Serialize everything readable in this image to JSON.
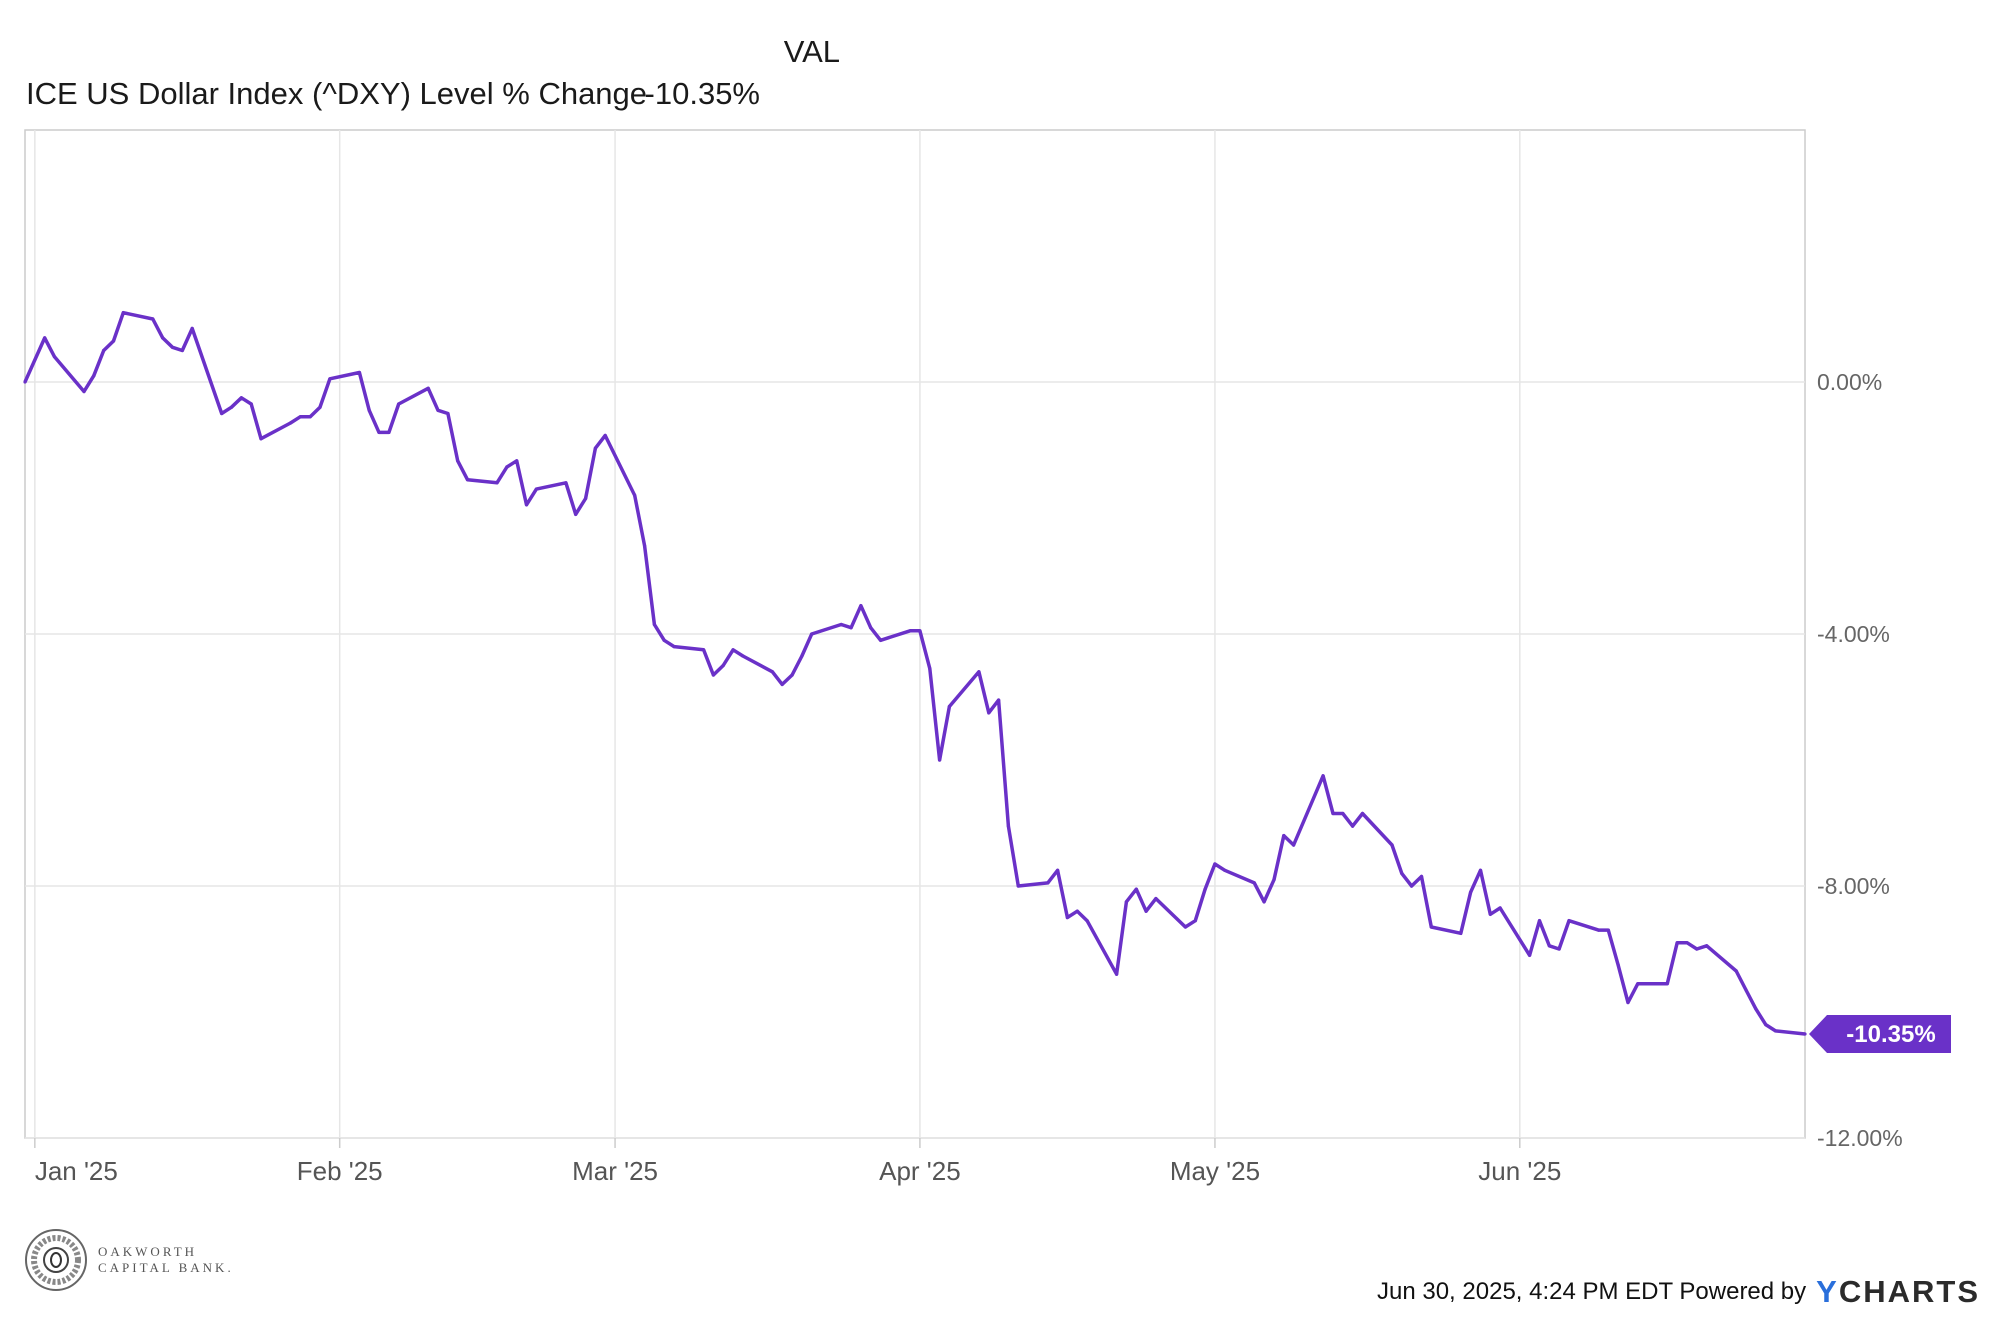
{
  "legend": {
    "column_header": "VAL",
    "series_label": "ICE US Dollar Index (^DXY) Level % Change",
    "series_value": "-10.35%"
  },
  "footer": {
    "timestamp": "Jun 30, 2025, 4:24 PM EDT Powered by",
    "brand_y": "Y",
    "brand_rest": "CHARTS"
  },
  "logo": {
    "line1": "OAKWORTH",
    "line2": "CAPITAL BANK."
  },
  "colors": {
    "series": "#6a31c8",
    "grid": "#e6e6e6",
    "axis": "#cccccc"
  },
  "chart_data": {
    "type": "line",
    "title": "",
    "xlabel": "",
    "ylabel": "",
    "ylim": [
      -12,
      4
    ],
    "xlim": [
      "2024-12-31",
      "2025-06-30"
    ],
    "y_ticks": [
      0,
      -4,
      -8,
      -12
    ],
    "y_tick_labels": [
      "0.00%",
      "-4.00%",
      "-8.00%",
      "-12.00%"
    ],
    "x_ticks": [
      "2025-01-01",
      "2025-02-01",
      "2025-03-01",
      "2025-04-01",
      "2025-05-01",
      "2025-06-01"
    ],
    "x_tick_labels": [
      "Jan '25",
      "Feb '25",
      "Mar '25",
      "Apr '25",
      "May '25",
      "Jun '25"
    ],
    "grid": true,
    "last_value_label": "-10.35%",
    "series": [
      {
        "name": "ICE US Dollar Index (^DXY) Level % Change",
        "points": [
          [
            "2024-12-31",
            0.0
          ],
          [
            "2025-01-02",
            0.7
          ],
          [
            "2025-01-03",
            0.4
          ],
          [
            "2025-01-06",
            -0.15
          ],
          [
            "2025-01-07",
            0.1
          ],
          [
            "2025-01-08",
            0.5
          ],
          [
            "2025-01-09",
            0.65
          ],
          [
            "2025-01-10",
            1.1
          ],
          [
            "2025-01-13",
            1.0
          ],
          [
            "2025-01-14",
            0.7
          ],
          [
            "2025-01-15",
            0.55
          ],
          [
            "2025-01-16",
            0.5
          ],
          [
            "2025-01-17",
            0.85
          ],
          [
            "2025-01-20",
            -0.5
          ],
          [
            "2025-01-21",
            -0.4
          ],
          [
            "2025-01-22",
            -0.25
          ],
          [
            "2025-01-23",
            -0.35
          ],
          [
            "2025-01-24",
            -0.9
          ],
          [
            "2025-01-27",
            -0.65
          ],
          [
            "2025-01-28",
            -0.55
          ],
          [
            "2025-01-29",
            -0.55
          ],
          [
            "2025-01-30",
            -0.4
          ],
          [
            "2025-01-31",
            0.05
          ],
          [
            "2025-02-03",
            0.15
          ],
          [
            "2025-02-04",
            -0.45
          ],
          [
            "2025-02-05",
            -0.8
          ],
          [
            "2025-02-06",
            -0.8
          ],
          [
            "2025-02-07",
            -0.35
          ],
          [
            "2025-02-10",
            -0.1
          ],
          [
            "2025-02-11",
            -0.45
          ],
          [
            "2025-02-12",
            -0.5
          ],
          [
            "2025-02-13",
            -1.25
          ],
          [
            "2025-02-14",
            -1.55
          ],
          [
            "2025-02-17",
            -1.6
          ],
          [
            "2025-02-18",
            -1.35
          ],
          [
            "2025-02-19",
            -1.25
          ],
          [
            "2025-02-20",
            -1.95
          ],
          [
            "2025-02-21",
            -1.7
          ],
          [
            "2025-02-24",
            -1.6
          ],
          [
            "2025-02-25",
            -2.1
          ],
          [
            "2025-02-26",
            -1.85
          ],
          [
            "2025-02-27",
            -1.05
          ],
          [
            "2025-02-28",
            -0.85
          ],
          [
            "2025-03-03",
            -1.8
          ],
          [
            "2025-03-04",
            -2.6
          ],
          [
            "2025-03-05",
            -3.85
          ],
          [
            "2025-03-06",
            -4.1
          ],
          [
            "2025-03-07",
            -4.2
          ],
          [
            "2025-03-10",
            -4.25
          ],
          [
            "2025-03-11",
            -4.65
          ],
          [
            "2025-03-12",
            -4.5
          ],
          [
            "2025-03-13",
            -4.25
          ],
          [
            "2025-03-14",
            -4.35
          ],
          [
            "2025-03-17",
            -4.6
          ],
          [
            "2025-03-18",
            -4.8
          ],
          [
            "2025-03-19",
            -4.65
          ],
          [
            "2025-03-20",
            -4.35
          ],
          [
            "2025-03-21",
            -4.0
          ],
          [
            "2025-03-24",
            -3.85
          ],
          [
            "2025-03-25",
            -3.9
          ],
          [
            "2025-03-26",
            -3.55
          ],
          [
            "2025-03-27",
            -3.9
          ],
          [
            "2025-03-28",
            -4.1
          ],
          [
            "2025-03-31",
            -3.95
          ],
          [
            "2025-04-01",
            -3.95
          ],
          [
            "2025-04-02",
            -4.55
          ],
          [
            "2025-04-03",
            -6.0
          ],
          [
            "2025-04-04",
            -5.15
          ],
          [
            "2025-04-07",
            -4.6
          ],
          [
            "2025-04-08",
            -5.25
          ],
          [
            "2025-04-09",
            -5.05
          ],
          [
            "2025-04-10",
            -7.05
          ],
          [
            "2025-04-11",
            -8.0
          ],
          [
            "2025-04-14",
            -7.95
          ],
          [
            "2025-04-15",
            -7.75
          ],
          [
            "2025-04-16",
            -8.5
          ],
          [
            "2025-04-17",
            -8.4
          ],
          [
            "2025-04-18",
            -8.55
          ],
          [
            "2025-04-21",
            -9.4
          ],
          [
            "2025-04-22",
            -8.25
          ],
          [
            "2025-04-23",
            -8.05
          ],
          [
            "2025-04-24",
            -8.4
          ],
          [
            "2025-04-25",
            -8.2
          ],
          [
            "2025-04-28",
            -8.65
          ],
          [
            "2025-04-29",
            -8.55
          ],
          [
            "2025-04-30",
            -8.05
          ],
          [
            "2025-05-01",
            -7.65
          ],
          [
            "2025-05-02",
            -7.75
          ],
          [
            "2025-05-05",
            -7.95
          ],
          [
            "2025-05-06",
            -8.25
          ],
          [
            "2025-05-07",
            -7.9
          ],
          [
            "2025-05-08",
            -7.2
          ],
          [
            "2025-05-09",
            -7.35
          ],
          [
            "2025-05-12",
            -6.25
          ],
          [
            "2025-05-13",
            -6.85
          ],
          [
            "2025-05-14",
            -6.85
          ],
          [
            "2025-05-15",
            -7.05
          ],
          [
            "2025-05-16",
            -6.85
          ],
          [
            "2025-05-19",
            -7.35
          ],
          [
            "2025-05-20",
            -7.8
          ],
          [
            "2025-05-21",
            -8.0
          ],
          [
            "2025-05-22",
            -7.85
          ],
          [
            "2025-05-23",
            -8.65
          ],
          [
            "2025-05-26",
            -8.75
          ],
          [
            "2025-05-27",
            -8.1
          ],
          [
            "2025-05-28",
            -7.75
          ],
          [
            "2025-05-29",
            -8.45
          ],
          [
            "2025-05-30",
            -8.35
          ],
          [
            "2025-06-02",
            -9.1
          ],
          [
            "2025-06-03",
            -8.55
          ],
          [
            "2025-06-04",
            -8.95
          ],
          [
            "2025-06-05",
            -9.0
          ],
          [
            "2025-06-06",
            -8.55
          ],
          [
            "2025-06-09",
            -8.7
          ],
          [
            "2025-06-10",
            -8.7
          ],
          [
            "2025-06-11",
            -9.25
          ],
          [
            "2025-06-12",
            -9.85
          ],
          [
            "2025-06-13",
            -9.55
          ],
          [
            "2025-06-16",
            -9.55
          ],
          [
            "2025-06-17",
            -8.9
          ],
          [
            "2025-06-18",
            -8.9
          ],
          [
            "2025-06-19",
            -9.0
          ],
          [
            "2025-06-20",
            -8.95
          ],
          [
            "2025-06-23",
            -9.35
          ],
          [
            "2025-06-24",
            -9.65
          ],
          [
            "2025-06-25",
            -9.95
          ],
          [
            "2025-06-26",
            -10.2
          ],
          [
            "2025-06-27",
            -10.3
          ],
          [
            "2025-06-30",
            -10.35
          ]
        ]
      }
    ]
  }
}
